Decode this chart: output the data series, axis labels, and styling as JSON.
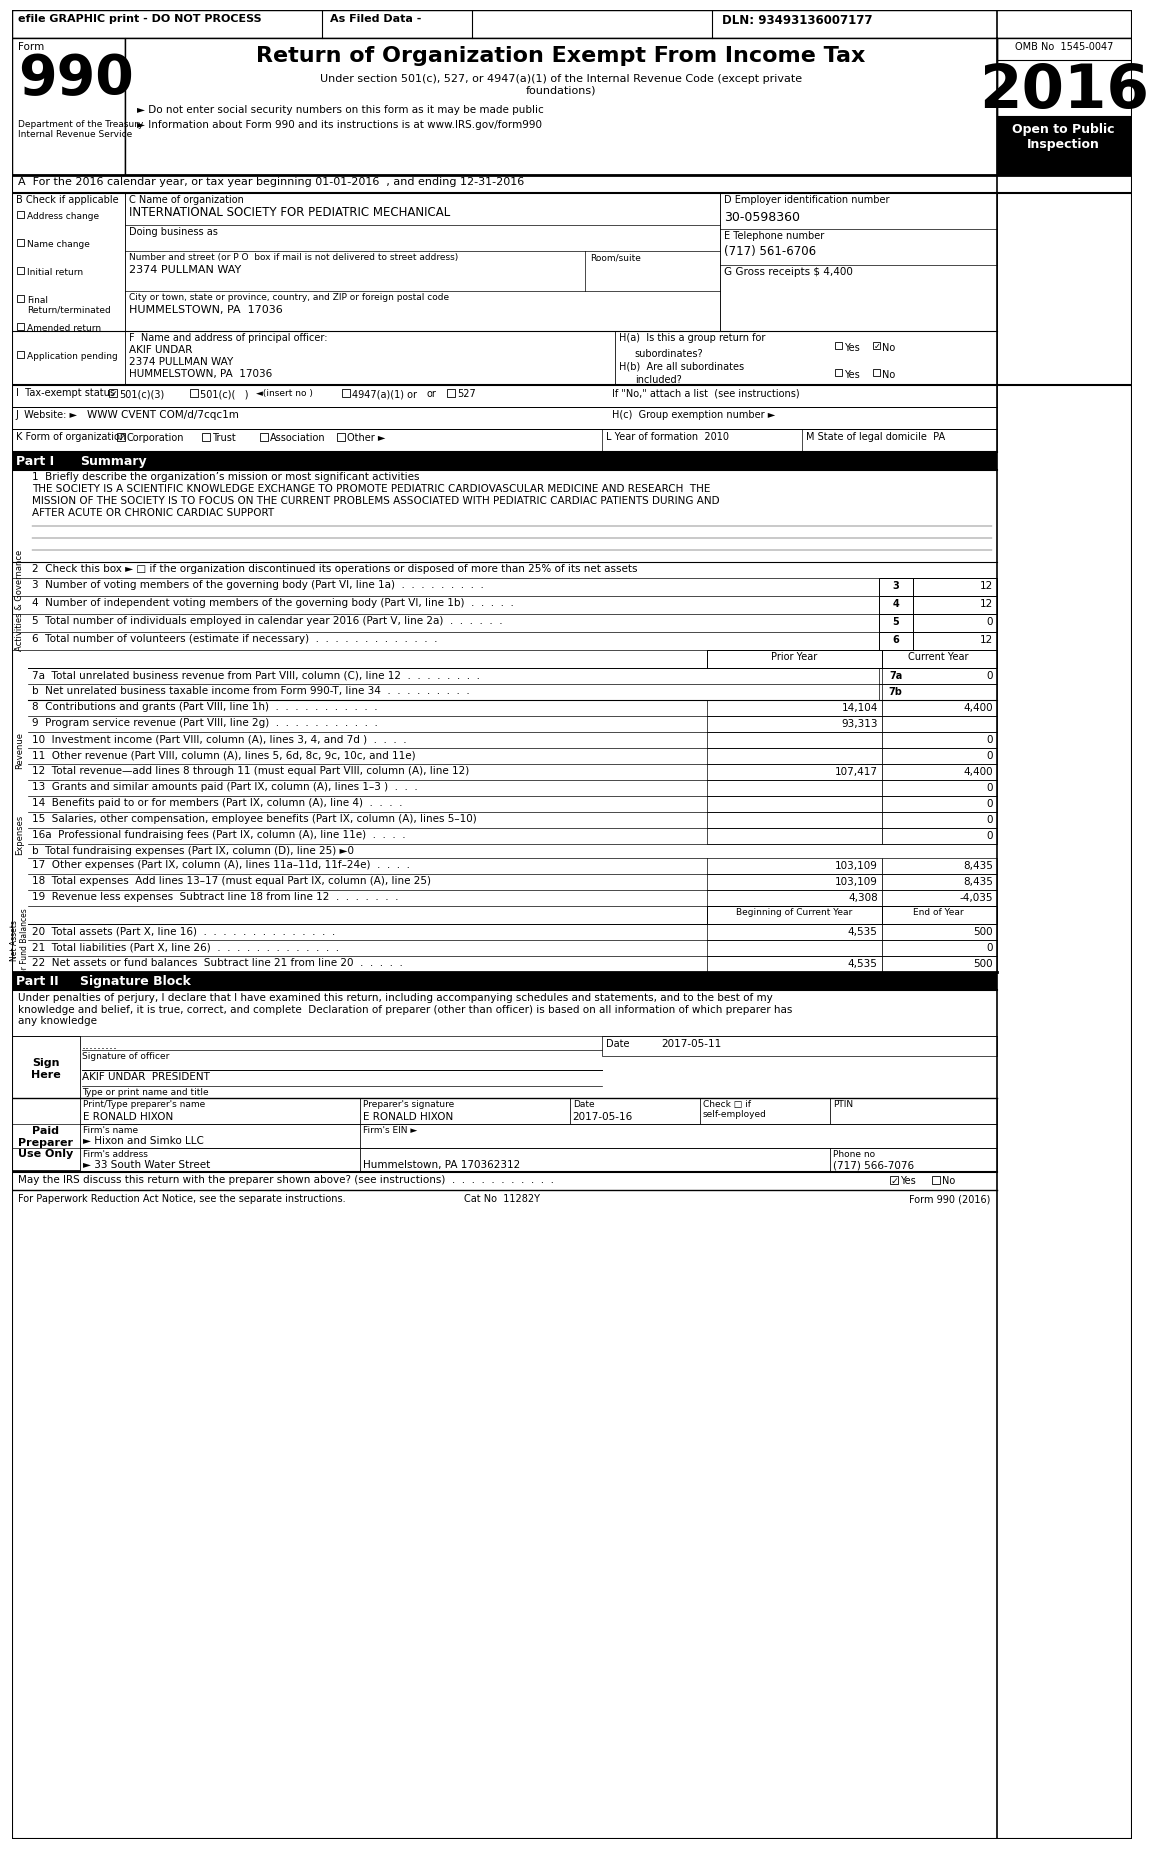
{
  "title": "Return of Organization Exempt From Income Tax",
  "subtitle": "Under section 501(c), 527, or 4947(a)(1) of the Internal Revenue Code (except private\nfoundations)",
  "year": "2016",
  "omb": "OMB No  1545-0047",
  "dln": "DLN: 93493136007177",
  "efile_header": "efile GRAPHIC print - DO NOT PROCESS",
  "as_filed": "As Filed Data -",
  "open_public": "Open to Public\nInspection",
  "dept": "Department of the Treasury\nInternal Revenue Service",
  "bullet1": "► Do not enter social security numbers on this form as it may be made public",
  "bullet2": "► Information about Form 990 and its instructions is at www.IRS.gov/form990",
  "part_a": "A  For the 2016 calendar year, or tax year beginning 01-01-2016  , and ending 12-31-2016",
  "org_name_label": "C Name of organization",
  "org_name": "INTERNATIONAL SOCIETY FOR PEDIATRIC MECHANICAL",
  "ein_label": "D Employer identification number",
  "ein": "30-0598360",
  "dba_label": "Doing business as",
  "address_label": "Number and street (or P O  box if mail is not delivered to street address)",
  "room_label": "Room/suite",
  "address": "2374 PULLMAN WAY",
  "phone_label": "E Telephone number",
  "phone": "(717) 561-6706",
  "city_label": "City or town, state or province, country, and ZIP or foreign postal code",
  "city": "HUMMELSTOWN, PA  17036",
  "gross_receipts": "G Gross receipts $ 4,400",
  "check_b": "B Check if applicable",
  "checks": [
    "Address change",
    "Name change",
    "Initial return",
    "Final\nReturn/terminated",
    "Amended return",
    "Application pending"
  ],
  "principal_officer_label": "F  Name and address of principal officer:",
  "ha_label": "H(a)  Is this a group return for",
  "ha_sub": "subordinates?",
  "hb_label": "H(b)  Are all subordinates",
  "hb_sub": "included?",
  "if_no": "If \"No,\" attach a list  (see instructions)",
  "hc_label": "H(c)  Group exemption number ►",
  "tax_exempt_label": "I  Tax-exempt status",
  "tax_501c3": "501(c)(3)",
  "tax_501c": "501(c)(   )",
  "tax_insert": "◄(insert no )",
  "tax_4947": "4947(a)(1) or",
  "tax_527": "527",
  "website_label": "J  Website: ►",
  "website": "WWW CVENT COM/d/7cqc1m",
  "form_org_label": "K Form of organization",
  "form_corp": "Corporation",
  "form_trust": "Trust",
  "form_assoc": "Association",
  "form_other": "Other ►",
  "year_formed_label": "L Year of formation  2010",
  "state_label": "M State of legal domicile  PA",
  "part1_label": "Part I",
  "part1_title": "Summary",
  "line1_label": "1  Briefly describe the organization’s mission or most significant activities",
  "mission_lines": [
    "THE SOCIETY IS A SCIENTIFIC KNOWLEDGE EXCHANGE TO PROMOTE PEDIATRIC CARDIOVASCULAR MEDICINE AND RESEARCH  THE",
    "MISSION OF THE SOCIETY IS TO FOCUS ON THE CURRENT PROBLEMS ASSOCIATED WITH PEDIATRIC CARDIAC PATIENTS DURING AND",
    "AFTER ACUTE OR CHRONIC CARDIAC SUPPORT"
  ],
  "side_label1": "Activities & Governance",
  "line2": "2  Check this box ► □ if the organization discontinued its operations or disposed of more than 25% of its net assets",
  "line3": "3  Number of voting members of the governing body (Part VI, line 1a)  .  .  .  .  .  .  .  .  .",
  "line3_num": "3",
  "line3_val": "12",
  "line4": "4  Number of independent voting members of the governing body (Part VI, line 1b)  .  .  .  .  .",
  "line4_num": "4",
  "line4_val": "12",
  "line5": "5  Total number of individuals employed in calendar year 2016 (Part V, line 2a)  .  .  .  .  .  .",
  "line5_num": "5",
  "line5_val": "0",
  "line6": "6  Total number of volunteers (estimate if necessary)  .  .  .  .  .  .  .  .  .  .  .  .  .",
  "line6_num": "6",
  "line6_val": "12",
  "line7a": "7a  Total unrelated business revenue from Part VIII, column (C), line 12  .  .  .  .  .  .  .  .",
  "line7a_num": "7a",
  "line7a_val": "0",
  "line7b": "b  Net unrelated business taxable income from Form 990-T, line 34  .  .  .  .  .  .  .  .  .",
  "line7b_num": "7b",
  "prior_year": "Prior Year",
  "current_year": "Current Year",
  "revenue_label": "Revenue",
  "line8": "8  Contributions and grants (Part VIII, line 1h)  .  .  .  .  .  .  .  .  .  .  .",
  "line8_prior": "14,104",
  "line8_current": "4,400",
  "line9": "9  Program service revenue (Part VIII, line 2g)  .  .  .  .  .  .  .  .  .  .  .",
  "line9_prior": "93,313",
  "line9_current": "",
  "line10": "10  Investment income (Part VIII, column (A), lines 3, 4, and 7d )  .  .  .  .",
  "line10_prior": "",
  "line10_current": "0",
  "line11": "11  Other revenue (Part VIII, column (A), lines 5, 6d, 8c, 9c, 10c, and 11e)",
  "line11_prior": "",
  "line11_current": "0",
  "line12": "12  Total revenue—add lines 8 through 11 (must equal Part VIII, column (A), line 12)",
  "line12_prior": "107,417",
  "line12_current": "4,400",
  "expenses_label": "Expenses",
  "line13": "13  Grants and similar amounts paid (Part IX, column (A), lines 1–3 )  .  .  .",
  "line13_current": "0",
  "line14": "14  Benefits paid to or for members (Part IX, column (A), line 4)  .  .  .  .",
  "line14_current": "0",
  "line15": "15  Salaries, other compensation, employee benefits (Part IX, column (A), lines 5–10)",
  "line15_current": "0",
  "line16a": "16a  Professional fundraising fees (Part IX, column (A), line 11e)  .  .  .  .",
  "line16a_current": "0",
  "line16b": "b  Total fundraising expenses (Part IX, column (D), line 25) ►0",
  "line17": "17  Other expenses (Part IX, column (A), lines 11a–11d, 11f–24e)  .  .  .  .",
  "line17_prior": "103,109",
  "line17_current": "8,435",
  "line18": "18  Total expenses  Add lines 13–17 (must equal Part IX, column (A), line 25)",
  "line18_prior": "103,109",
  "line18_current": "8,435",
  "line19": "19  Revenue less expenses  Subtract line 18 from line 12  .  .  .  .  .  .  .",
  "line19_prior": "4,308",
  "line19_current": "-4,035",
  "net_assets_label": "Net Assets\nor Fund Balances",
  "beg_year": "Beginning of Current Year",
  "end_year": "End of Year",
  "line20": "20  Total assets (Part X, line 16)  .  .  .  .  .  .  .  .  .  .  .  .  .  .",
  "line20_beg": "4,535",
  "line20_end": "500",
  "line21": "21  Total liabilities (Part X, line 26)  .  .  .  .  .  .  .  .  .  .  .  .  .",
  "line21_beg": "",
  "line21_end": "0",
  "line22": "22  Net assets or fund balances  Subtract line 21 from line 20  .  .  .  .  .",
  "line22_beg": "4,535",
  "line22_end": "500",
  "part2_label": "Part II",
  "part2_title": "Signature Block",
  "sig_text": "Under penalties of perjury, I declare that I have examined this return, including accompanying schedules and statements, and to the best of my\nknowledge and belief, it is true, correct, and complete  Declaration of preparer (other than officer) is based on all information of which preparer has\nany knowledge",
  "sign_here": "Sign\nHere",
  "sig_label": "Signature of officer",
  "sig_date_label": "Date",
  "sig_date": "2017-05-11",
  "sig_dots": ".........",
  "officer_name": "AKIF UNDAR  PRESIDENT",
  "officer_type": "Type or print name and title",
  "paid_preparer": "Paid\nPreparer\nUse Only",
  "preparer_name_label": "Print/Type preparer's name",
  "preparer_name": "E RONALD HIXON",
  "preparer_sig_label": "Preparer's signature",
  "preparer_sig": "E RONALD HIXON",
  "prep_date_label": "Date",
  "prep_date": "2017-05-16",
  "check_self_label": "Check □ if\nself-employed",
  "ptin_label": "PTIN",
  "firm_name_label": "Firm's name",
  "firm_name": "► Hixon and Simko LLC",
  "firm_ein_label": "Firm's EIN ►",
  "firm_address_label": "Firm's address",
  "firm_address": "► 33 South Water Street",
  "firm_city": "Hummelstown, PA 170362312",
  "phone_no_label": "Phone no",
  "phone_no": "(717) 566-7076",
  "discuss_label": "May the IRS discuss this return with the preparer shown above? (see instructions)  .  .  .  .  .  .  .  .  .  .  .",
  "footer_left": "For Paperwork Reduction Act Notice, see the separate instructions.",
  "footer_cat": "Cat No  11282Y",
  "footer_form": "Form 990 (2016)"
}
